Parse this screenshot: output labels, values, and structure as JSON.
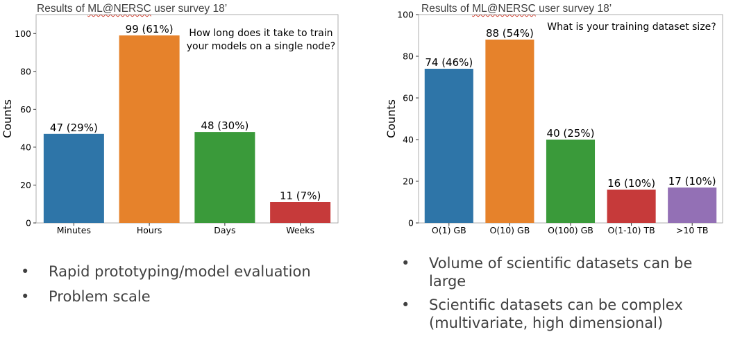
{
  "left": {
    "survey_title_prefix": "Results of ",
    "survey_title_org": "ML@NERSC",
    "survey_title_suffix": " user survey 18’",
    "bullets": [
      "Rapid prototyping/model evaluation",
      "Problem scale"
    ]
  },
  "right": {
    "survey_title_prefix": "Results of ",
    "survey_title_org": "ML@NERSC",
    "survey_title_suffix": " user survey 18’",
    "bullets": [
      "Volume of scientific datasets can be large",
      "Scientific datasets can be complex (multivariate, high dimensional)"
    ]
  },
  "chart_data": [
    {
      "type": "bar",
      "title": "How long does it take to train your models on a single node?",
      "title_lines": [
        "How long does it take to train",
        "your models on a single node?"
      ],
      "categories": [
        "Minutes",
        "Hours",
        "Days",
        "Weeks"
      ],
      "values": [
        47,
        99,
        48,
        11
      ],
      "data_labels": [
        "47 (29%)",
        "99 (61%)",
        "48 (30%)",
        "11 (7%)"
      ],
      "colors": [
        "#2e75a8",
        "#e6822b",
        "#3a9a3a",
        "#c63a3a"
      ],
      "xlabel": "",
      "ylabel": "Counts",
      "ylim": [
        0,
        110
      ],
      "yticks": [
        0,
        20,
        40,
        60,
        80,
        100
      ]
    },
    {
      "type": "bar",
      "title": "What is your training dataset size?",
      "title_lines": [
        "What is your training dataset size?"
      ],
      "categories": [
        "O(1) GB",
        "O(10) GB",
        "O(100) GB",
        "O(1-10) TB",
        ">10 TB"
      ],
      "values": [
        74,
        88,
        40,
        16,
        17
      ],
      "data_labels": [
        "74 (46%)",
        "88 (54%)",
        "40 (25%)",
        "16 (10%)",
        "17 (10%)"
      ],
      "colors": [
        "#2e75a8",
        "#e6822b",
        "#3a9a3a",
        "#c63a3a",
        "#9370b5"
      ],
      "xlabel": "",
      "ylabel": "Counts",
      "ylim": [
        0,
        100
      ],
      "yticks": [
        0,
        20,
        40,
        60,
        80,
        100
      ]
    }
  ]
}
